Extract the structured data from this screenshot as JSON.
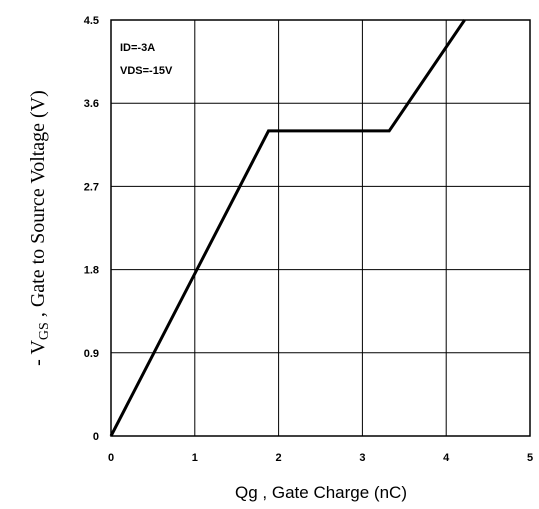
{
  "chart_data": {
    "type": "line",
    "xlabel": "Qg , Gate Charge (nC)",
    "ylabel": {
      "prefix": "- V",
      "subscript": "GS",
      "suffix": " , Gate to Source Voltage (V)"
    },
    "xlim": [
      0,
      5
    ],
    "ylim": [
      0,
      4.5
    ],
    "x_ticks": [
      "0",
      "1",
      "2",
      "3",
      "4",
      "5"
    ],
    "y_ticks": [
      "0",
      "0.9",
      "1.8",
      "2.7",
      "3.6",
      "4.5"
    ],
    "grid": true,
    "annotations": [
      "ID=-3A",
      "VDS=-15V"
    ],
    "series": [
      {
        "x": [
          0,
          1.88,
          3.32,
          4.22
        ],
        "y": [
          0,
          3.3,
          3.3,
          4.5
        ]
      }
    ]
  }
}
